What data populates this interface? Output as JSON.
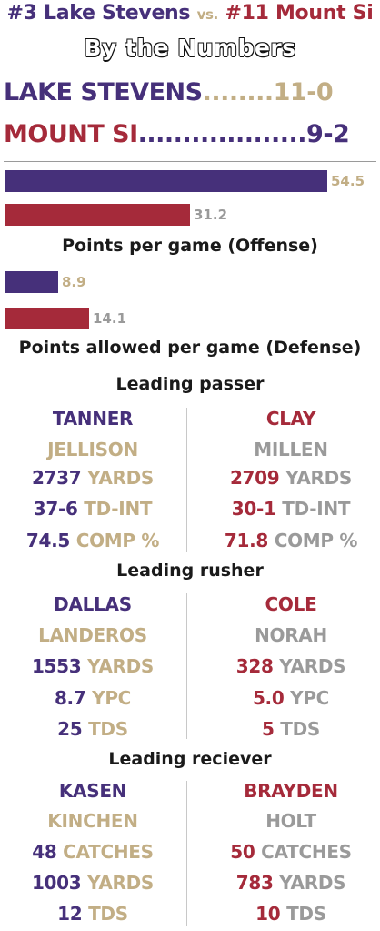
{
  "header": {
    "team1_rank": "#3 Lake Stevens",
    "vs": "vs.",
    "team2_rank": "#11 Mount Si",
    "subtitle": "By the Numbers"
  },
  "records": [
    {
      "team": "LAKE STEVENS",
      "dots": "........",
      "record": "11-0"
    },
    {
      "team": "MOUNT SI",
      "dots": "...................",
      "record": "9-2"
    }
  ],
  "chart_data": [
    {
      "type": "bar",
      "title": "Points per game (Offense)",
      "categories": [
        "Lake Stevens",
        "Mount Si"
      ],
      "values": [
        54.5,
        31.2
      ],
      "labels": [
        "54.5",
        "31.2"
      ],
      "colors": [
        "#46307a",
        "#a52a3a"
      ]
    },
    {
      "type": "bar",
      "title": "Points allowed per game (Defense)",
      "categories": [
        "Lake Stevens",
        "Mount Si"
      ],
      "values": [
        8.9,
        14.1
      ],
      "labels": [
        "8.9",
        "14.1"
      ],
      "colors": [
        "#46307a",
        "#a52a3a"
      ]
    }
  ],
  "sections": [
    {
      "title": "Leading passer",
      "left": {
        "first": "TANNER",
        "last": "JELLISON",
        "stats": [
          {
            "num": "2737",
            "label": "YARDS"
          },
          {
            "num": "37-6",
            "label": "TD-INT"
          },
          {
            "num": "74.5",
            "label": "COMP %"
          }
        ]
      },
      "right": {
        "first": "CLAY",
        "last": "MILLEN",
        "stats": [
          {
            "num": "2709",
            "label": "YARDS"
          },
          {
            "num": "30-1",
            "label": "TD-INT"
          },
          {
            "num": "71.8",
            "label": "COMP %"
          }
        ]
      }
    },
    {
      "title": "Leading rusher",
      "left": {
        "first": "DALLAS",
        "last": "LANDEROS",
        "stats": [
          {
            "num": "1553",
            "label": "YARDS"
          },
          {
            "num": "8.7",
            "label": "YPC"
          },
          {
            "num": "25",
            "label": "TDS"
          }
        ]
      },
      "right": {
        "first": "COLE",
        "last": "NORAH",
        "stats": [
          {
            "num": "328",
            "label": "YARDS"
          },
          {
            "num": "5.0",
            "label": "YPC"
          },
          {
            "num": "5",
            "label": "TDS"
          }
        ]
      }
    },
    {
      "title": "Leading reciever",
      "left": {
        "first": "KASEN",
        "last": "KINCHEN",
        "stats": [
          {
            "num": "48",
            "label": "CATCHES"
          },
          {
            "num": "1003",
            "label": "YARDS"
          },
          {
            "num": "12",
            "label": "TDS"
          }
        ]
      },
      "right": {
        "first": "BRAYDEN",
        "last": "HOLT",
        "stats": [
          {
            "num": "50",
            "label": "CATCHES"
          },
          {
            "num": "783",
            "label": "YARDS"
          },
          {
            "num": "10",
            "label": "TDS"
          }
        ]
      }
    }
  ],
  "colors": {
    "lake_stevens_primary": "#46307a",
    "lake_stevens_secondary": "#c2ae85",
    "mount_si_primary": "#a52a3a",
    "mount_si_secondary": "#9a9a9a"
  }
}
